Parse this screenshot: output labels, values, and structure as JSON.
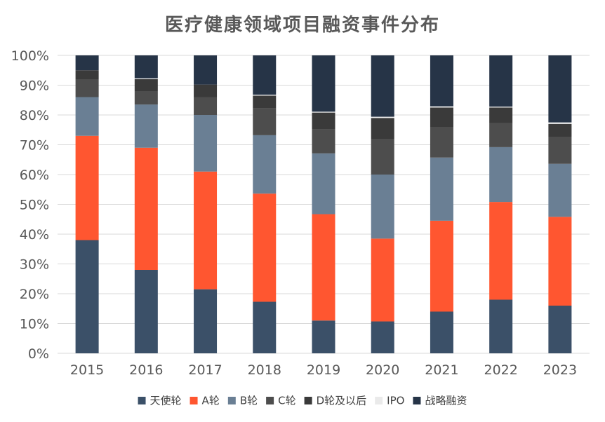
{
  "chart_data": {
    "type": "bar",
    "stacked": true,
    "normalized": true,
    "title": "医疗健康领域项目融资事件分布",
    "xlabel": "",
    "ylabel": "",
    "categories": [
      "2015",
      "2016",
      "2017",
      "2018",
      "2019",
      "2020",
      "2021",
      "2022",
      "2023"
    ],
    "ylim": [
      0,
      100
    ],
    "yticks": [
      "0%",
      "10%",
      "20%",
      "30%",
      "40%",
      "50%",
      "60%",
      "70%",
      "80%",
      "90%",
      "100%"
    ],
    "grid": true,
    "legend_position": "bottom",
    "series": [
      {
        "name": "天使轮",
        "color": "#3B5068",
        "values": [
          38,
          28,
          21.5,
          17.3,
          11,
          10.7,
          14,
          18,
          16
        ]
      },
      {
        "name": "A轮",
        "color": "#FF5630",
        "values": [
          35,
          41,
          39.5,
          36.3,
          35.7,
          27.8,
          30.5,
          32.8,
          29.8
        ]
      },
      {
        "name": "B轮",
        "color": "#6A7F94",
        "values": [
          13,
          14.5,
          19,
          19.6,
          20.4,
          21.5,
          21.2,
          18.4,
          17.8
        ]
      },
      {
        "name": "C轮",
        "color": "#4D4D4D",
        "values": [
          6,
          4.5,
          6,
          9,
          8,
          12,
          10.3,
          8,
          9
        ]
      },
      {
        "name": "D轮及以后",
        "color": "#3A3A3A",
        "values": [
          3,
          4,
          4.2,
          4.3,
          5.7,
          7,
          6.5,
          5.3,
          4.4
        ]
      },
      {
        "name": "IPO",
        "color": "#EAEAEA",
        "values": [
          0,
          0.3,
          0,
          0.3,
          0.3,
          0.4,
          0.4,
          0.3,
          0.5
        ]
      },
      {
        "name": "战略融资",
        "color": "#263447",
        "values": [
          5,
          7.7,
          9.8,
          13.2,
          18.9,
          20.6,
          17.1,
          17.2,
          22.5
        ]
      }
    ]
  }
}
